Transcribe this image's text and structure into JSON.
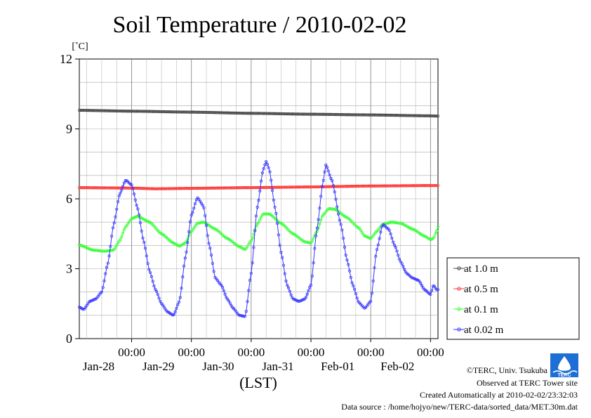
{
  "chart_data": {
    "type": "line",
    "title": "Soil Temperature / 2010-02-02",
    "yunit": "[˚C]",
    "xlabel": "(LST)",
    "ylim": [
      0,
      12
    ],
    "yticks": [
      0,
      3,
      6,
      9,
      12
    ],
    "xlim_days": [
      -0.875,
      5.125
    ],
    "xticks": [
      {
        "day": 0,
        "time": "00:00",
        "date": "Jan-28"
      },
      {
        "day": 1,
        "time": "00:00",
        "date": "Jan-29"
      },
      {
        "day": 2,
        "time": "00:00",
        "date": "Jan-30"
      },
      {
        "day": 3,
        "time": "00:00",
        "date": "Jan-31"
      },
      {
        "day": 4,
        "time": "00:00",
        "date": "Feb-01"
      },
      {
        "day": 5,
        "time": "00:00",
        "date": "Feb-02"
      }
    ],
    "grid": true,
    "legend_position": "right",
    "series": [
      {
        "name": "at 1.0 m",
        "color": "#444444",
        "points": [
          [
            -0.875,
            9.8
          ],
          [
            0,
            9.76
          ],
          [
            1,
            9.72
          ],
          [
            2,
            9.67
          ],
          [
            3,
            9.63
          ],
          [
            4,
            9.6
          ],
          [
            5,
            9.56
          ],
          [
            5.125,
            9.55
          ]
        ]
      },
      {
        "name": "at 0.5 m",
        "color": "#ff3333",
        "points": [
          [
            -0.875,
            6.48
          ],
          [
            0,
            6.46
          ],
          [
            0.4,
            6.43
          ],
          [
            1,
            6.45
          ],
          [
            2,
            6.48
          ],
          [
            3,
            6.51
          ],
          [
            4,
            6.55
          ],
          [
            5,
            6.57
          ],
          [
            5.125,
            6.57
          ]
        ]
      },
      {
        "name": "at 0.1 m",
        "color": "#33ff33",
        "points": [
          [
            -0.875,
            4.02
          ],
          [
            -0.65,
            3.8
          ],
          [
            -0.45,
            3.75
          ],
          [
            -0.3,
            3.8
          ],
          [
            -0.2,
            4.2
          ],
          [
            -0.1,
            4.8
          ],
          [
            0,
            5.15
          ],
          [
            0.1,
            5.25
          ],
          [
            0.3,
            5.0
          ],
          [
            0.5,
            4.5
          ],
          [
            0.7,
            4.1
          ],
          [
            0.8,
            3.97
          ],
          [
            0.9,
            4.1
          ],
          [
            1.0,
            4.6
          ],
          [
            1.1,
            4.95
          ],
          [
            1.2,
            5.0
          ],
          [
            1.4,
            4.7
          ],
          [
            1.6,
            4.3
          ],
          [
            1.8,
            3.95
          ],
          [
            1.9,
            3.82
          ],
          [
            2.0,
            4.2
          ],
          [
            2.1,
            4.9
          ],
          [
            2.2,
            5.35
          ],
          [
            2.3,
            5.35
          ],
          [
            2.5,
            4.95
          ],
          [
            2.7,
            4.5
          ],
          [
            2.9,
            4.15
          ],
          [
            3.0,
            4.1
          ],
          [
            3.1,
            4.6
          ],
          [
            3.2,
            5.3
          ],
          [
            3.3,
            5.58
          ],
          [
            3.4,
            5.55
          ],
          [
            3.6,
            5.2
          ],
          [
            3.8,
            4.75
          ],
          [
            3.9,
            4.4
          ],
          [
            4.0,
            4.3
          ],
          [
            4.1,
            4.6
          ],
          [
            4.2,
            4.9
          ],
          [
            4.35,
            5.0
          ],
          [
            4.5,
            4.95
          ],
          [
            4.7,
            4.7
          ],
          [
            4.9,
            4.4
          ],
          [
            5.0,
            4.25
          ],
          [
            5.05,
            4.3
          ],
          [
            5.1,
            4.6
          ],
          [
            5.125,
            4.8
          ]
        ]
      },
      {
        "name": "at 0.02 m",
        "color": "#3333ff",
        "points": [
          [
            -0.875,
            1.35
          ],
          [
            -0.8,
            1.25
          ],
          [
            -0.7,
            1.6
          ],
          [
            -0.6,
            1.7
          ],
          [
            -0.5,
            2.0
          ],
          [
            -0.4,
            3.2
          ],
          [
            -0.3,
            4.9
          ],
          [
            -0.2,
            6.2
          ],
          [
            -0.1,
            6.8
          ],
          [
            0.0,
            6.6
          ],
          [
            0.1,
            5.6
          ],
          [
            0.2,
            4.2
          ],
          [
            0.3,
            2.9
          ],
          [
            0.4,
            2.1
          ],
          [
            0.5,
            1.5
          ],
          [
            0.6,
            1.15
          ],
          [
            0.7,
            1.0
          ],
          [
            0.8,
            1.6
          ],
          [
            0.9,
            3.5
          ],
          [
            1.0,
            5.3
          ],
          [
            1.1,
            6.05
          ],
          [
            1.2,
            5.7
          ],
          [
            1.3,
            4.0
          ],
          [
            1.4,
            2.6
          ],
          [
            1.5,
            2.3
          ],
          [
            1.6,
            1.7
          ],
          [
            1.7,
            1.3
          ],
          [
            1.8,
            1.0
          ],
          [
            1.9,
            0.95
          ],
          [
            2.0,
            2.8
          ],
          [
            2.1,
            5.6
          ],
          [
            2.2,
            7.25
          ],
          [
            2.25,
            7.6
          ],
          [
            2.3,
            7.3
          ],
          [
            2.4,
            5.6
          ],
          [
            2.5,
            3.7
          ],
          [
            2.6,
            2.3
          ],
          [
            2.7,
            1.7
          ],
          [
            2.8,
            1.6
          ],
          [
            2.9,
            1.7
          ],
          [
            3.0,
            2.3
          ],
          [
            3.1,
            4.7
          ],
          [
            3.2,
            6.7
          ],
          [
            3.25,
            7.45
          ],
          [
            3.35,
            6.8
          ],
          [
            3.5,
            4.9
          ],
          [
            3.6,
            3.4
          ],
          [
            3.7,
            2.3
          ],
          [
            3.8,
            1.55
          ],
          [
            3.9,
            1.3
          ],
          [
            4.0,
            1.6
          ],
          [
            4.1,
            3.8
          ],
          [
            4.2,
            4.9
          ],
          [
            4.3,
            4.7
          ],
          [
            4.4,
            4.0
          ],
          [
            4.5,
            3.3
          ],
          [
            4.6,
            2.8
          ],
          [
            4.7,
            2.6
          ],
          [
            4.8,
            2.5
          ],
          [
            4.9,
            2.1
          ],
          [
            5.0,
            1.9
          ],
          [
            5.05,
            2.3
          ],
          [
            5.1,
            2.1
          ],
          [
            5.125,
            2.1
          ]
        ]
      }
    ]
  },
  "credits": {
    "org": "©TERC, Univ. Tsukuba",
    "observed": "Observed at TERC Tower site",
    "created": "Created Automatically at 2010-02-02/23:32:03",
    "source": "Data source : /home/hojyo/new/TERC-data/sorted_data/MET.30m.dat"
  },
  "logo": {
    "text": "TERC",
    "color": "#1d6fd6"
  }
}
